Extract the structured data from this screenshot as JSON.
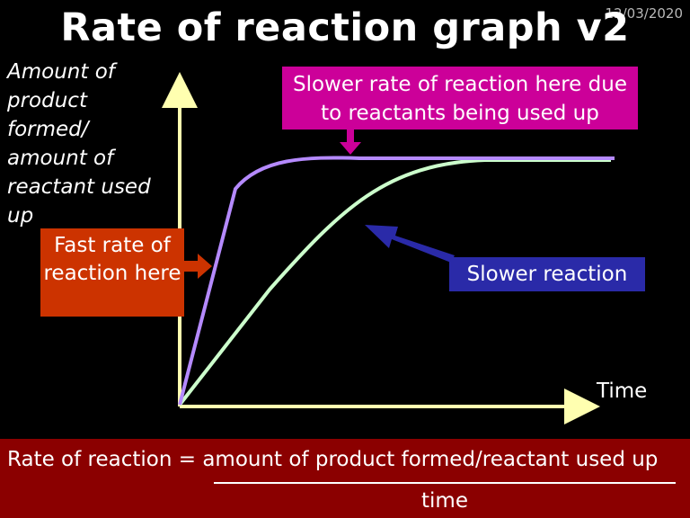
{
  "slide": {
    "date": "12/03/2020",
    "title": "Rate of reaction graph v2"
  },
  "graph": {
    "y_axis_label": "Amount of product formed/ amount of reactant used up",
    "x_axis_label": "Time",
    "fast_curve_color": "#b58aff",
    "slow_curve_color": "#ccffcc",
    "axis_color": "#ffffb0"
  },
  "callouts": {
    "top": "Slower rate of reaction here due to reactants being used up",
    "fast": "Fast rate of reaction here",
    "slow": "Slower reaction"
  },
  "equation": {
    "numerator": "Rate of reaction = amount of product formed/reactant used up",
    "denominator": "time"
  }
}
